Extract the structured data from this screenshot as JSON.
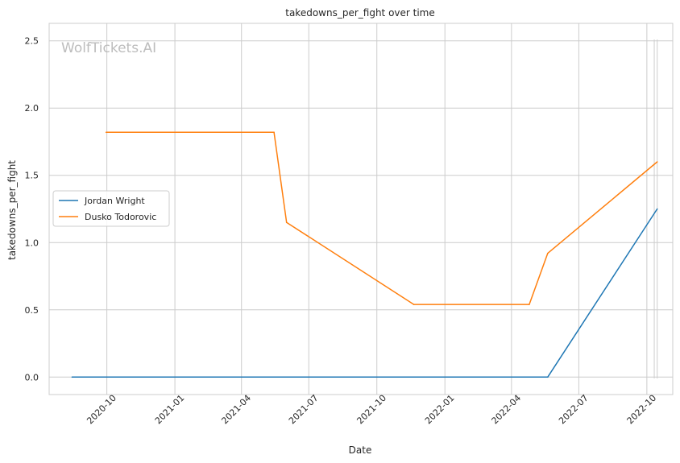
{
  "watermark": "WolfTickets.AI",
  "chart_data": {
    "type": "line",
    "title": "takedowns_per_fight over time",
    "xlabel": "Date",
    "ylabel": "takedowns_per_fight",
    "x_ticks": [
      "2020-10",
      "2021-01",
      "2021-04",
      "2021-07",
      "2021-10",
      "2022-01",
      "2022-04",
      "2022-07",
      "2022-10"
    ],
    "y_ticks": [
      "0.0",
      "0.5",
      "1.0",
      "1.5",
      "2.0",
      "2.5"
    ],
    "xlim": [
      "2020-07-15",
      "2022-11-05"
    ],
    "ylim": [
      -0.13,
      2.63
    ],
    "grid": true,
    "legend_position": "center-left",
    "series": [
      {
        "name": "Jordan Wright",
        "color": "#1f77b4",
        "points": [
          {
            "x": "2020-08-15",
            "y": 0.0
          },
          {
            "x": "2022-05-20",
            "y": 0.0
          },
          {
            "x": "2022-10-15",
            "y": 1.25
          }
        ]
      },
      {
        "name": "Dusko Todorovic",
        "color": "#ff7f0e",
        "points": [
          {
            "x": "2020-09-30",
            "y": 1.82
          },
          {
            "x": "2021-05-15",
            "y": 1.82
          },
          {
            "x": "2021-06-01",
            "y": 1.15
          },
          {
            "x": "2021-11-20",
            "y": 0.54
          },
          {
            "x": "2022-04-25",
            "y": 0.54
          },
          {
            "x": "2022-05-20",
            "y": 0.92
          },
          {
            "x": "2022-10-15",
            "y": 1.6
          }
        ]
      }
    ],
    "vertical_markers": [
      "2022-10-11",
      "2022-10-15"
    ]
  }
}
